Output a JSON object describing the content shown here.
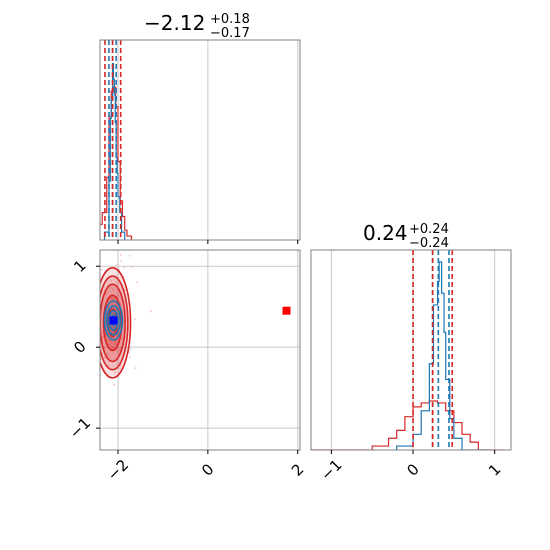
{
  "chart_data": {
    "type": "corner",
    "parameters": [
      {
        "title": {
          "median": "−2.12",
          "plus": "+0.18",
          "minus": "−0.17"
        },
        "range": [
          -2.4,
          2.05
        ],
        "ticks": [
          -2,
          0,
          2
        ],
        "tick_labels": [
          "−2",
          "0",
          "2"
        ]
      },
      {
        "title": {
          "median": "0.24",
          "plus": "+0.24",
          "minus": "−0.24"
        },
        "range": [
          -1.25,
          1.2
        ],
        "ticks": [
          -1,
          0,
          1
        ],
        "tick_labels": [
          "−1",
          "0",
          "1"
        ]
      }
    ],
    "joint_panel": {
      "x_range": [
        -2.4,
        2.05
      ],
      "y_range": [
        -1.27,
        1.2
      ],
      "y_ticks": [
        -1,
        0,
        1
      ],
      "y_tick_labels": [
        "−1",
        "0",
        "1"
      ],
      "red_marker": {
        "x": 1.75,
        "y": 0.45
      },
      "blue_marker": {
        "x": -2.1,
        "y": 0.33
      }
    },
    "series": [
      {
        "name": "",
        "color": "#d62728",
        "hist_param1": {
          "bin_edges": [
            -2.55,
            -2.45,
            -2.35,
            -2.25,
            -2.2,
            -2.15,
            -2.1,
            -2.05,
            -2.0,
            -1.95,
            -1.9,
            -1.85,
            -1.8,
            -1.7
          ],
          "counts": [
            0.02,
            0.08,
            0.14,
            0.32,
            0.63,
            0.76,
            0.78,
            0.68,
            0.4,
            0.2,
            0.12,
            0.05,
            0.02
          ]
        },
        "hist_param2": {
          "bin_edges": [
            -1.25,
            -0.5,
            -0.3,
            -0.2,
            -0.1,
            0.0,
            0.1,
            0.2,
            0.3,
            0.4,
            0.5,
            0.6,
            0.7,
            0.8,
            1.1
          ],
          "counts": [
            0.0,
            0.02,
            0.06,
            0.1,
            0.17,
            0.22,
            0.24,
            0.25,
            0.24,
            0.2,
            0.14,
            0.08,
            0.04,
            0.0
          ]
        },
        "quantiles_param1": [
          -2.29,
          -2.12,
          -1.94
        ],
        "quantiles_param2": [
          0.0,
          0.24,
          0.48
        ],
        "contour_center": {
          "x": -2.12,
          "y": 0.3
        },
        "contour_sigma": {
          "x": 0.2,
          "y": 0.34
        }
      },
      {
        "name": "",
        "color": "#1f77b4",
        "hist_param1": {
          "bin_edges": [
            -2.3,
            -2.2,
            -2.17,
            -2.15,
            -2.12,
            -2.1,
            -2.08,
            -2.06,
            -2.04,
            -2.02,
            -2.0,
            -1.96,
            -1.92,
            -1.85
          ],
          "counts": [
            0.04,
            0.3,
            0.62,
            0.72,
            0.9,
            0.82,
            0.74,
            0.6,
            0.42,
            0.34,
            0.22,
            0.14,
            0.04
          ]
        },
        "hist_param2": {
          "bin_edges": [
            -0.2,
            0.0,
            0.1,
            0.2,
            0.25,
            0.3,
            0.32,
            0.35,
            0.38,
            0.4,
            0.45,
            0.5,
            0.6,
            0.9
          ],
          "counts": [
            0.02,
            0.08,
            0.2,
            0.44,
            0.74,
            0.86,
            0.96,
            0.8,
            0.6,
            0.36,
            0.16,
            0.06,
            0.0
          ]
        },
        "quantiles_param1": [
          -2.2,
          -2.12,
          -2.04
        ],
        "quantiles_param2": [
          0.24,
          0.31,
          0.44
        ],
        "contour_center": {
          "x": -2.1,
          "y": 0.33
        },
        "contour_sigma": {
          "x": 0.1,
          "y": 0.12
        }
      }
    ],
    "grid": true
  }
}
